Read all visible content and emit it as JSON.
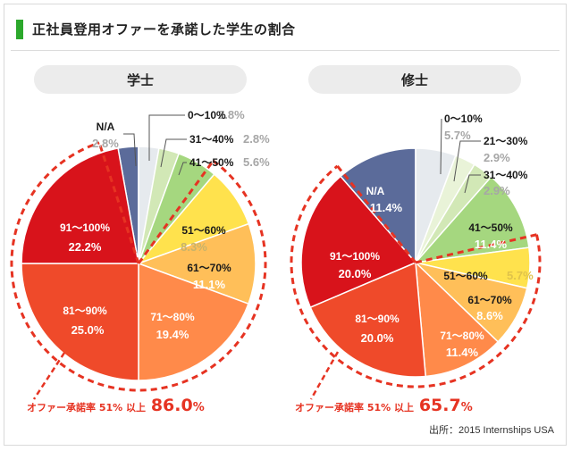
{
  "title": "正社員登用オファーを承諾した学生の割合",
  "source": "出所：2015 Internships USA",
  "colors": {
    "na": "#5b6b9a",
    "0-10": "#e6eaee",
    "11-20": "#eef3de",
    "21-30": "#e9f3d8",
    "31-40": "#d2e8b6",
    "41-50": "#a5d77f",
    "51-60": "#ffe24d",
    "61-70": "#ffbf59",
    "71-80": "#ff8a4a",
    "81-90": "#ef4a2a",
    "91-100": "#d8131b",
    "accent_red": "#e63322",
    "muted_gray": "#a6a6a6"
  },
  "chart_data": [
    {
      "type": "pie",
      "title": "学士",
      "slices": [
        {
          "label": "N/A",
          "value": 2.8,
          "color_key": "na"
        },
        {
          "label": "0～10%",
          "value": 2.8,
          "color_key": "0-10"
        },
        {
          "label": "31～40%",
          "value": 2.8,
          "color_key": "31-40"
        },
        {
          "label": "41～50%",
          "value": 5.6,
          "color_key": "41-50"
        },
        {
          "label": "51～60%",
          "value": 8.3,
          "color_key": "51-60"
        },
        {
          "label": "61～70%",
          "value": 11.1,
          "color_key": "61-70"
        },
        {
          "label": "71～80%",
          "value": 19.4,
          "color_key": "71-80"
        },
        {
          "label": "81～90%",
          "value": 25.0,
          "color_key": "81-90"
        },
        {
          "label": "91～100%",
          "value": 22.2,
          "color_key": "91-100"
        }
      ],
      "annotation": {
        "prefix": "オファー承諾率 51% 以上",
        "value": "86.0",
        "unit": "%"
      }
    },
    {
      "type": "pie",
      "title": "修士",
      "slices": [
        {
          "label": "N/A",
          "value": 11.4,
          "color_key": "na"
        },
        {
          "label": "0～10%",
          "value": 5.7,
          "color_key": "0-10"
        },
        {
          "label": "21～30%",
          "value": 2.9,
          "color_key": "21-30"
        },
        {
          "label": "31～40%",
          "value": 2.9,
          "color_key": "31-40"
        },
        {
          "label": "41～50%",
          "value": 11.4,
          "color_key": "41-50"
        },
        {
          "label": "51～60%",
          "value": 5.7,
          "color_key": "51-60"
        },
        {
          "label": "61～70%",
          "value": 8.6,
          "color_key": "61-70"
        },
        {
          "label": "71～80%",
          "value": 11.4,
          "color_key": "71-80"
        },
        {
          "label": "81～90%",
          "value": 20.0,
          "color_key": "81-90"
        },
        {
          "label": "91～100%",
          "value": 20.0,
          "color_key": "91-100"
        }
      ],
      "annotation": {
        "prefix": "オファー承諾率 51% 以上",
        "value": "65.7",
        "unit": "%"
      }
    }
  ]
}
